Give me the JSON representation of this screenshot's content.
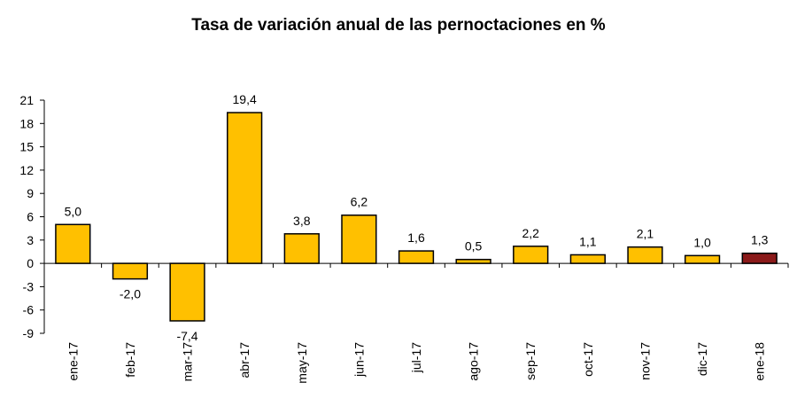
{
  "chart_data": {
    "type": "bar",
    "title": "Tasa de variación anual de las pernoctaciones en %",
    "xlabel": "",
    "ylabel": "",
    "categories": [
      "ene-17",
      "feb-17",
      "mar-17",
      "abr-17",
      "may-17",
      "jun-17",
      "jul-17",
      "ago-17",
      "sep-17",
      "oct-17",
      "nov-17",
      "dic-17",
      "ene-18"
    ],
    "values": [
      5.0,
      -2.0,
      -7.4,
      19.4,
      3.8,
      6.2,
      1.6,
      0.5,
      2.2,
      1.1,
      2.1,
      1.0,
      1.3
    ],
    "value_labels": [
      "5,0",
      "-2,0",
      "-7,4",
      "19,4",
      "3,8",
      "6,2",
      "1,6",
      "0,5",
      "2,2",
      "1,1",
      "2,1",
      "1,0",
      "1,3"
    ],
    "ylim": [
      -9,
      21
    ],
    "yticks": [
      21,
      18,
      15,
      12,
      9,
      6,
      3,
      0,
      -3,
      -6,
      -9
    ],
    "grid": false,
    "legend": "none",
    "colors": {
      "bar": "#FFC000",
      "highlight_bar": "#8B1A1A",
      "highlight_index": 12,
      "bar_stroke": "#000000"
    }
  }
}
